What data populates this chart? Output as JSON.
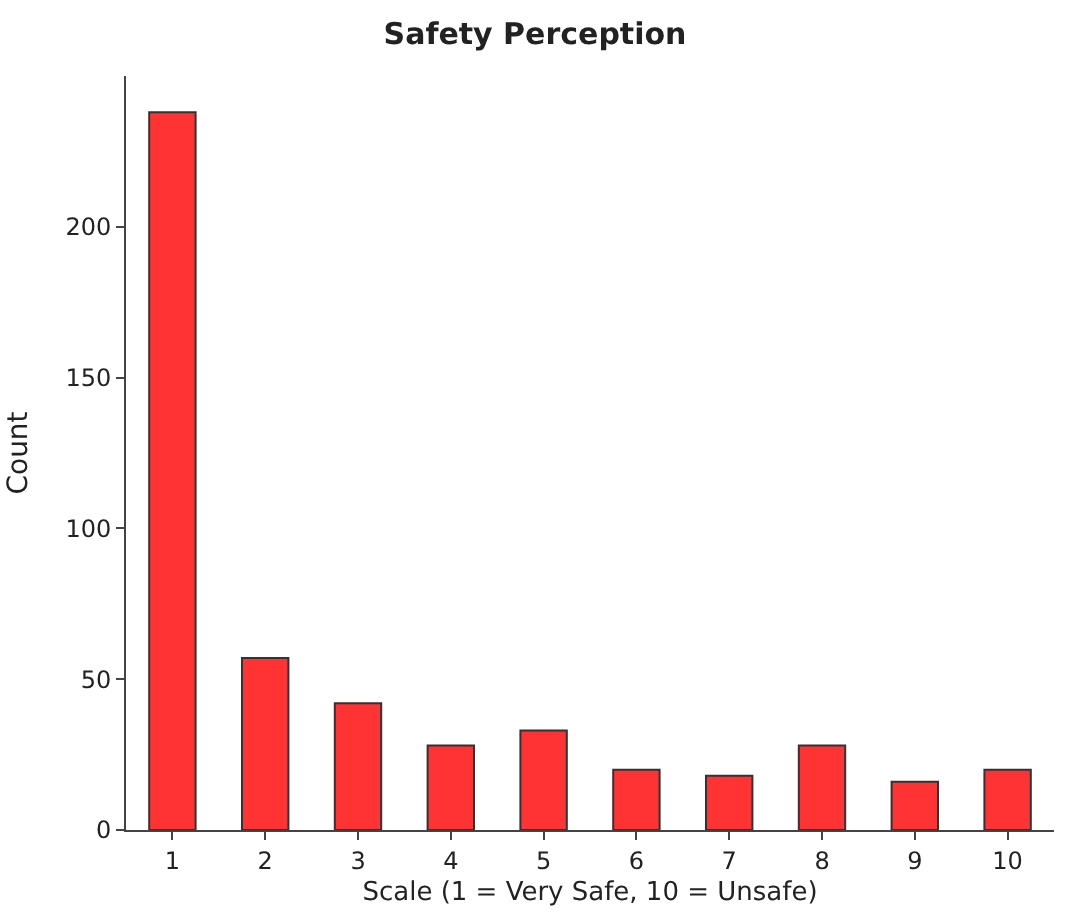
{
  "chart_data": {
    "type": "bar",
    "title": "Safety Perception",
    "xlabel": "Scale (1 = Very Safe, 10 = Unsafe)",
    "ylabel": "Count",
    "categories": [
      "1",
      "2",
      "3",
      "4",
      "5",
      "6",
      "7",
      "8",
      "9",
      "10"
    ],
    "values": [
      238,
      57,
      42,
      28,
      33,
      20,
      18,
      28,
      16,
      20
    ],
    "color": "#ff3333",
    "ylim": [
      0,
      250
    ],
    "yticks": [
      0,
      50,
      100,
      150,
      200
    ]
  }
}
